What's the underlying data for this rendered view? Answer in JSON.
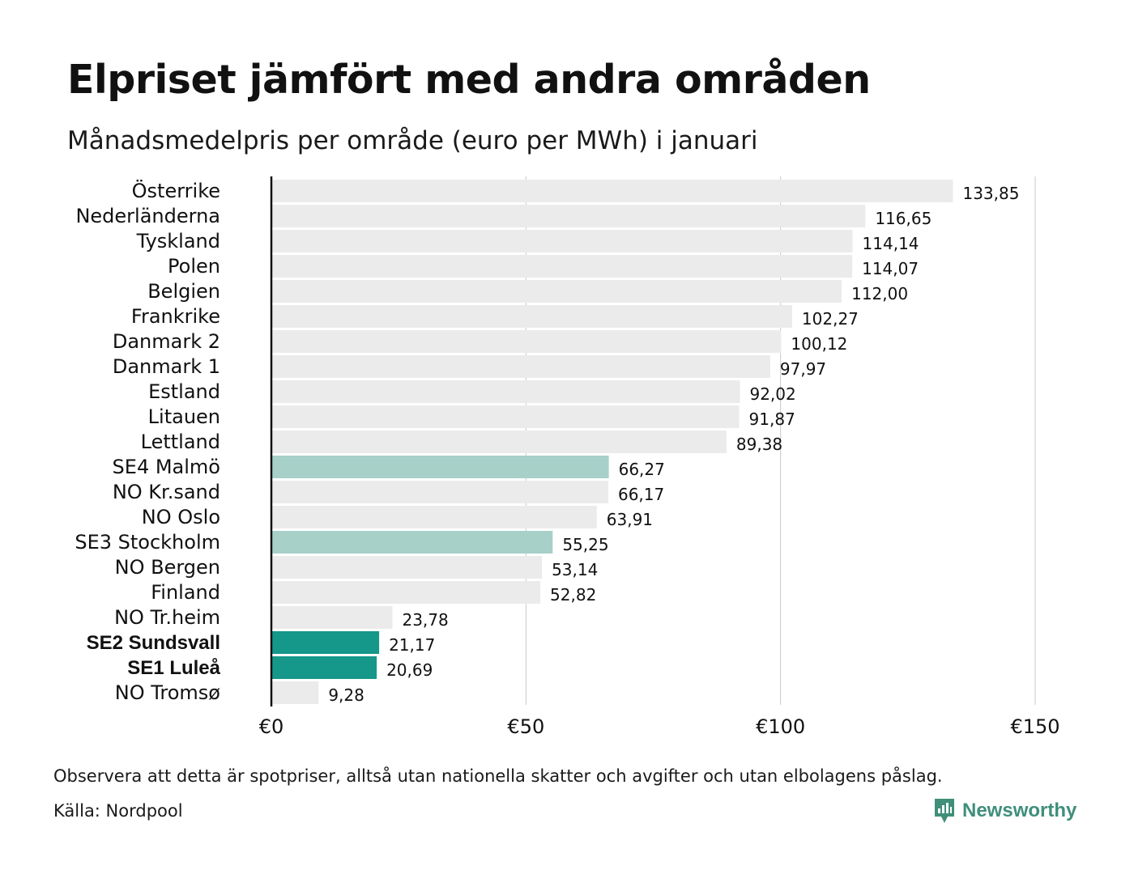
{
  "title": "Elpriset jämfört med andra områden",
  "subtitle": "Månadsmedelpris per område (euro per MWh) i januari",
  "note": "Observera att detta är spotpriser, alltså utan nationella skatter och avgifter och utan elbolagens påslag.",
  "source": "Källa: Nordpool",
  "brand": {
    "name": "Newsworthy",
    "icon": "newsworthy-logo-icon",
    "color": "#3f8f7a"
  },
  "colors": {
    "default_bar": "#ebebeb",
    "highlight_bar": "#a7d0c9",
    "strong_highlight_bar": "#15978a",
    "grid": "#c8c8cc",
    "axis": "#111111"
  },
  "chart_data": {
    "type": "bar",
    "orientation": "horizontal",
    "title": "Elpriset jämfört med andra områden",
    "subtitle": "Månadsmedelpris per område (euro per MWh) i januari",
    "xlim": [
      0,
      150
    ],
    "xticks": [
      0,
      50,
      100,
      150
    ],
    "xtick_labels": [
      "€0",
      "€50",
      "€100",
      "€150"
    ],
    "grid": true,
    "categories": [
      "Österrike",
      "Nederländerna",
      "Tyskland",
      "Polen",
      "Belgien",
      "Frankrike",
      "Danmark  2",
      "Danmark  1",
      "Estland",
      "Litauen",
      "Lettland",
      "SE4  Malmö",
      "NO Kr.sand",
      "NO Oslo",
      "SE3  Stockholm",
      "NO Bergen",
      "Finland",
      "NO Tr.heim",
      "SE2 Sundsvall",
      "SE1 Luleå",
      "NO Tromsø"
    ],
    "values": [
      133.85,
      116.65,
      114.14,
      114.07,
      112.0,
      102.27,
      100.12,
      97.97,
      92.02,
      91.87,
      89.38,
      66.27,
      66.17,
      63.91,
      55.25,
      53.14,
      52.82,
      23.78,
      21.17,
      20.69,
      9.28
    ],
    "value_labels": [
      "133,85",
      "116,65",
      "114,14",
      "114,07",
      "112,00",
      "102,27",
      "100,12",
      "97,97",
      "92,02",
      "91,87",
      "89,38",
      "66,27",
      "66,17",
      "63,91",
      "55,25",
      "53,14",
      "52,82",
      "23,78",
      "21,17",
      "20,69",
      "9,28"
    ],
    "highlight": [
      "none",
      "none",
      "none",
      "none",
      "none",
      "none",
      "none",
      "none",
      "none",
      "none",
      "none",
      "light",
      "none",
      "none",
      "light",
      "none",
      "none",
      "none",
      "strong",
      "strong",
      "none"
    ]
  }
}
